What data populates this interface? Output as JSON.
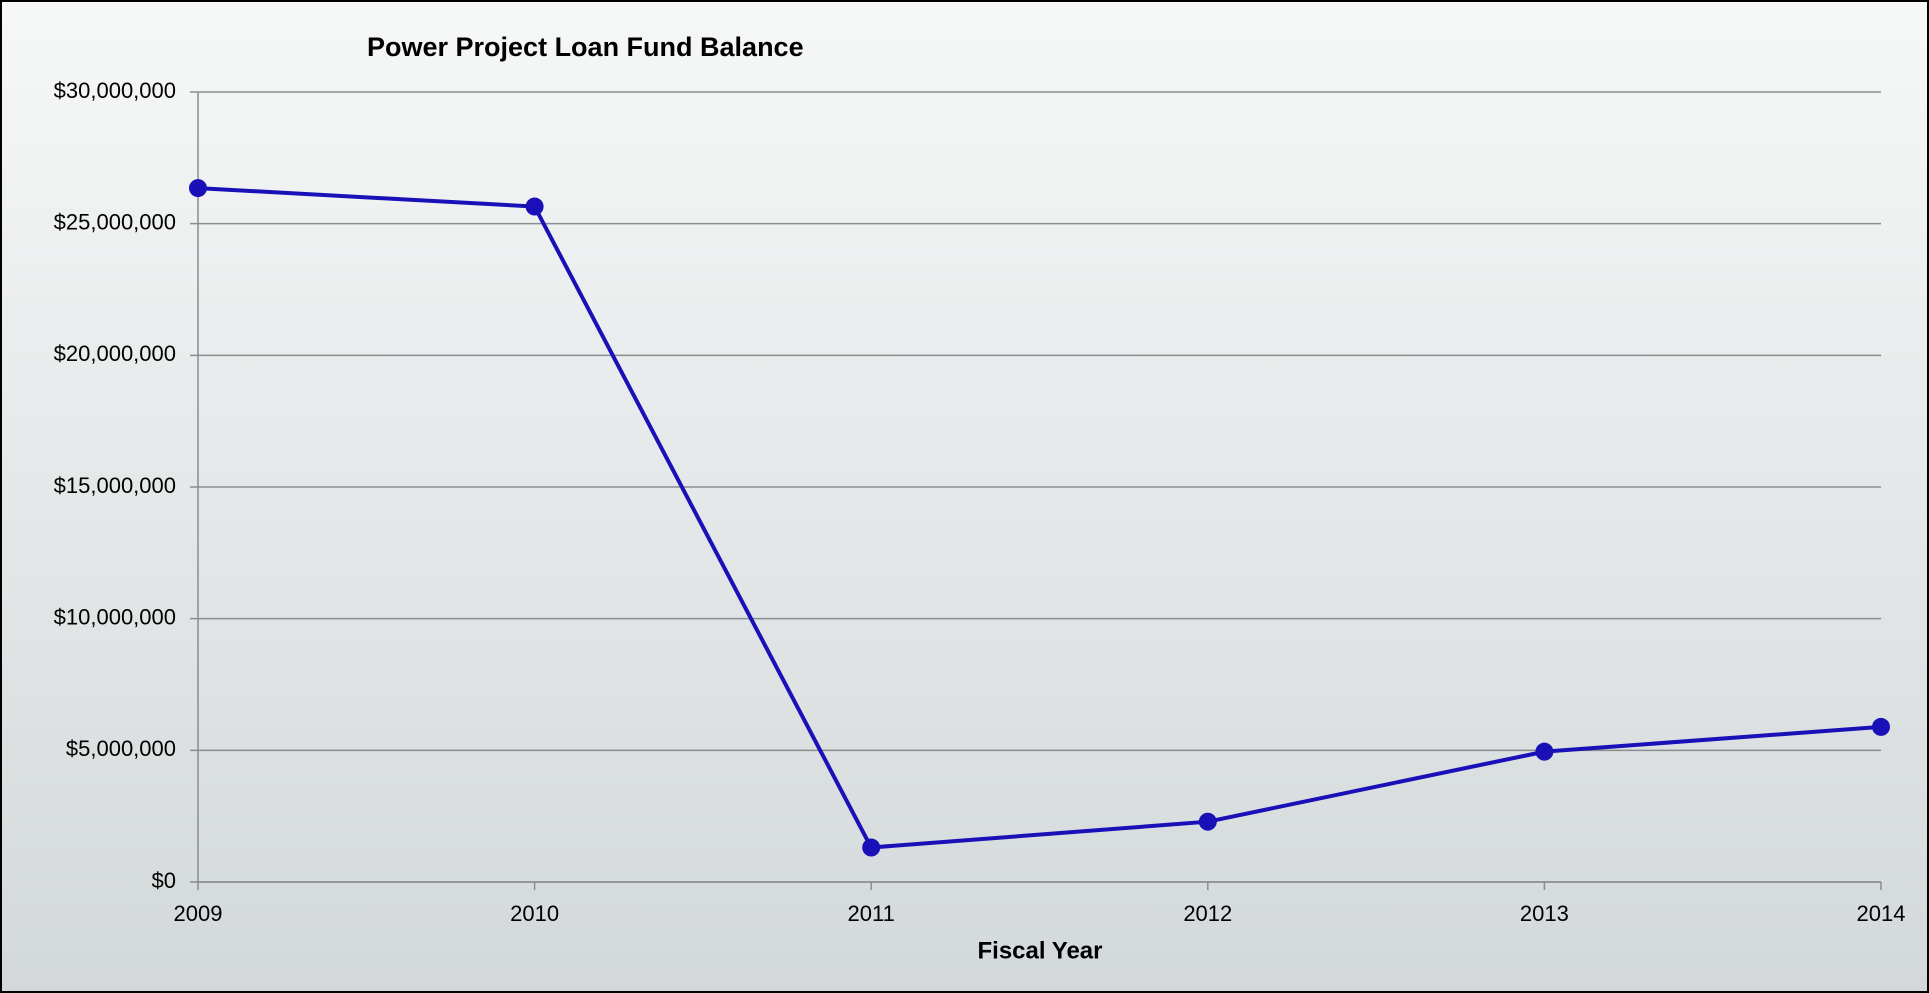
{
  "chart_data": {
    "type": "line",
    "title": "Power Project Loan Fund Balance",
    "x_label": "Fiscal Year",
    "categories": [
      "2009",
      "2010",
      "2011",
      "2012",
      "2013",
      "2014"
    ],
    "series": [
      {
        "name": "Power Project Loan Fund Balance",
        "color": "#1a10b8",
        "values": [
          26350000,
          25650000,
          1310000,
          2290000,
          4950000,
          5890000
        ]
      }
    ],
    "ylim": [
      0,
      30000000
    ],
    "yticks": [
      {
        "value": 0,
        "label": "$0"
      },
      {
        "value": 5000000,
        "label": "$5,000,000"
      },
      {
        "value": 10000000,
        "label": "$10,000,000"
      },
      {
        "value": 15000000,
        "label": "$15,000,000"
      },
      {
        "value": 20000000,
        "label": "$20,000,000"
      },
      {
        "value": 25000000,
        "label": "$25,000,000"
      },
      {
        "value": 30000000,
        "label": "$30,000,000"
      }
    ],
    "grid": true
  }
}
